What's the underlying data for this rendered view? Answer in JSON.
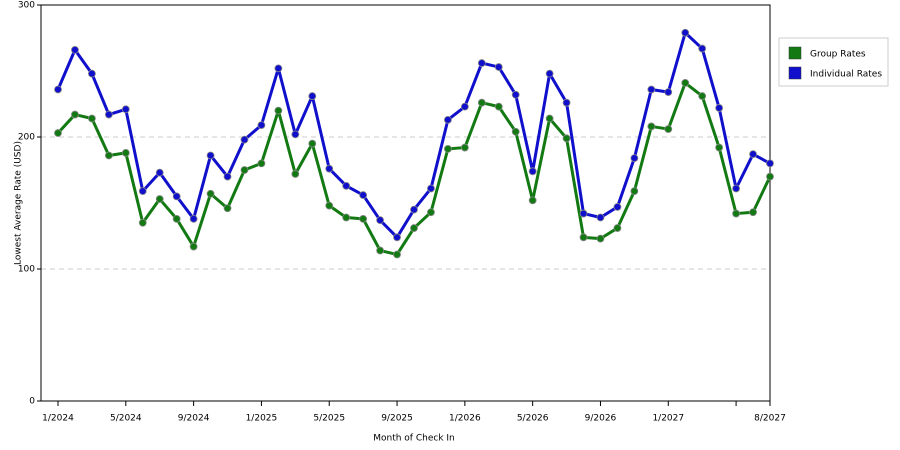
{
  "chart_data": {
    "type": "line",
    "x_label": "Month of Check In",
    "y_label": "Lowest Average Rate (USD)",
    "categories": [
      "1/2024",
      null,
      null,
      null,
      "5/2024",
      null,
      null,
      null,
      "9/2024",
      null,
      null,
      null,
      "1/2025",
      null,
      null,
      null,
      "5/2025",
      null,
      null,
      null,
      "9/2025",
      null,
      null,
      null,
      "1/2026",
      null,
      null,
      null,
      "5/2026",
      null,
      null,
      null,
      "9/2026",
      null,
      null,
      null,
      "1/2027",
      null,
      null,
      null,
      null,
      null,
      "8/2027"
    ],
    "series": [
      {
        "name": "Group Rates",
        "color": "#137a13",
        "values": [
          203,
          217,
          214,
          186,
          188,
          135,
          153,
          138,
          117,
          157,
          146,
          175,
          180,
          220,
          172,
          195,
          148,
          139,
          138,
          114,
          111,
          131,
          143,
          191,
          192,
          226,
          223,
          204,
          152,
          214,
          199,
          124,
          123,
          131,
          159,
          208,
          206,
          241,
          231,
          192,
          142,
          143,
          170
        ]
      },
      {
        "name": "Individual Rates",
        "color": "#1010cc",
        "values": [
          236,
          266,
          248,
          217,
          221,
          159,
          173,
          155,
          138,
          186,
          170,
          198,
          209,
          252,
          202,
          231,
          176,
          163,
          156,
          137,
          124,
          145,
          161,
          213,
          223,
          256,
          253,
          232,
          174,
          248,
          226,
          142,
          139,
          147,
          184,
          236,
          234,
          279,
          267,
          222,
          161,
          187,
          180
        ]
      }
    ],
    "ylim": [
      0,
      300
    ],
    "yticks": [
      0,
      100,
      200,
      300
    ],
    "grid": true,
    "legend": "right"
  }
}
